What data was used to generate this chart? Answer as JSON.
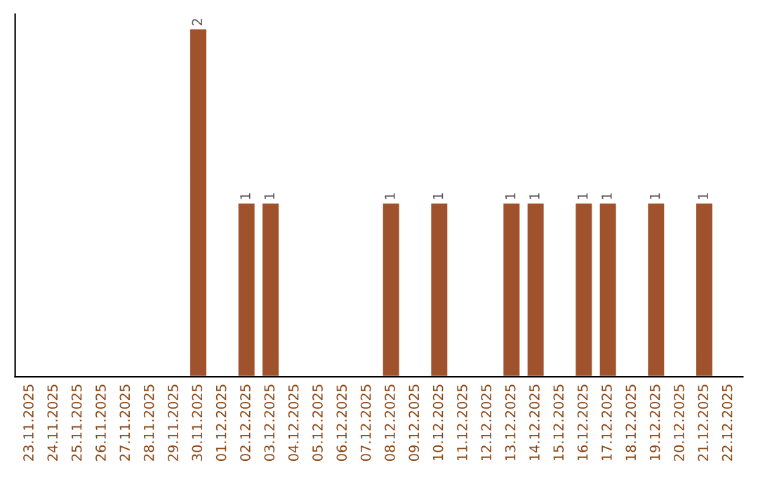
{
  "chart_data": {
    "type": "bar",
    "categories": [
      "23.11.2025",
      "24.11.2025",
      "25.11.2025",
      "26.11.2025",
      "27.11.2025",
      "28.11.2025",
      "29.11.2025",
      "30.11.2025",
      "01.12.2025",
      "02.12.2025",
      "03.12.2025",
      "04.12.2025",
      "05.12.2025",
      "06.12.2025",
      "07.12.2025",
      "08.12.2025",
      "09.12.2025",
      "10.12.2025",
      "11.12.2025",
      "12.12.2025",
      "13.12.2025",
      "14.12.2025",
      "15.12.2025",
      "16.12.2025",
      "17.12.2025",
      "18.12.2025",
      "19.12.2025",
      "20.12.2025",
      "21.12.2025",
      "22.12.2025"
    ],
    "values": [
      0,
      0,
      0,
      0,
      0,
      0,
      0,
      2,
      0,
      1,
      1,
      0,
      0,
      0,
      0,
      1,
      0,
      1,
      0,
      0,
      1,
      1,
      0,
      1,
      1,
      0,
      1,
      0,
      1,
      0
    ],
    "value_labels": [
      null,
      null,
      null,
      null,
      null,
      null,
      null,
      "2",
      null,
      "1",
      "1",
      null,
      null,
      null,
      null,
      "1",
      null,
      "1",
      null,
      null,
      "1",
      "1",
      null,
      "1",
      "1",
      null,
      "1",
      null,
      "1",
      null
    ],
    "color": "#a0522d",
    "tick_labels": "x",
    "grid": false,
    "legend": false
  }
}
